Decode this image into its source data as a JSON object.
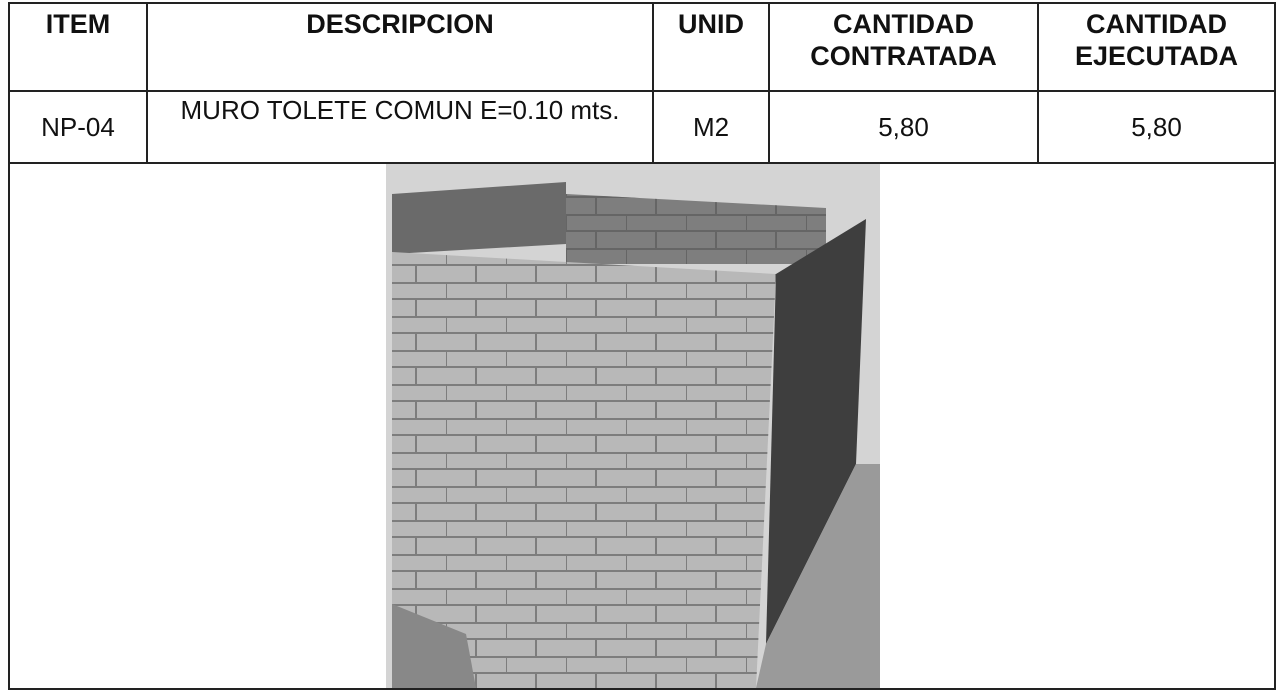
{
  "table": {
    "header": [
      "ITEM",
      "DESCRIPCION",
      "UNID",
      "CANTIDAD CONTRATADA",
      "CANTIDAD EJECUTADA"
    ],
    "rows": [
      [
        "NP-04",
        "MURO TOLETE COMUN E=0.10 mts.",
        "M2",
        "5,80",
        "5,80"
      ]
    ]
  }
}
